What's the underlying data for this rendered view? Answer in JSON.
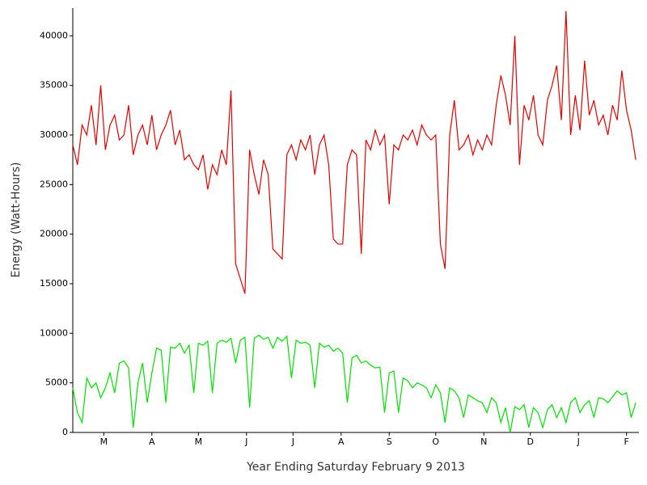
{
  "chart_data": {
    "type": "line",
    "xlabel": "Year Ending Saturday February  9  2013",
    "ylabel": "Energy (Watt-Hours)",
    "x": [
      0,
      3,
      6,
      9,
      12,
      15,
      18,
      21,
      24,
      27,
      30,
      33,
      36,
      39,
      42,
      45,
      48,
      51,
      54,
      57,
      60,
      63,
      66,
      69,
      72,
      75,
      78,
      81,
      84,
      87,
      90,
      93,
      96,
      99,
      102,
      105,
      108,
      111,
      114,
      117,
      120,
      123,
      126,
      129,
      132,
      135,
      138,
      141,
      144,
      147,
      150,
      153,
      156,
      159,
      162,
      165,
      168,
      171,
      174,
      177,
      180,
      183,
      186,
      189,
      192,
      195,
      198,
      201,
      204,
      207,
      210,
      213,
      216,
      219,
      222,
      225,
      228,
      231,
      234,
      237,
      240,
      243,
      246,
      249,
      252,
      255,
      258,
      261,
      264,
      267,
      270,
      273,
      276,
      279,
      282,
      285,
      288,
      291,
      294,
      297,
      300,
      303,
      306,
      309,
      312,
      315,
      318,
      321,
      324,
      327,
      330,
      333,
      336,
      339,
      342,
      345,
      348,
      351,
      354,
      357,
      360,
      363
    ],
    "series": [
      {
        "color": "#e00000",
        "values": [
          29000,
          27000,
          31000,
          30000,
          33000,
          29000,
          35000,
          28500,
          31000,
          32000,
          29500,
          30000,
          33000,
          28000,
          30000,
          31000,
          29000,
          32000,
          28500,
          30000,
          31000,
          32500,
          29000,
          30500,
          27500,
          28000,
          27000,
          26500,
          28000,
          24500,
          27000,
          26000,
          28500,
          27000,
          34500,
          17000,
          15500,
          14000,
          28500,
          26000,
          24000,
          27500,
          26000,
          18500,
          18000,
          17500,
          28000,
          29000,
          27500,
          29500,
          28500,
          30000,
          26000,
          29000,
          30000,
          27000,
          19500,
          19000,
          19000,
          27000,
          28500,
          28000,
          18000,
          29500,
          28500,
          30500,
          29000,
          30000,
          23000,
          29000,
          28500,
          30000,
          29500,
          30500,
          29000,
          31000,
          30000,
          29500,
          30000,
          19000,
          16500,
          30000,
          33500,
          28500,
          29000,
          30000,
          28000,
          29500,
          28500,
          30000,
          29000,
          33000,
          36000,
          34000,
          31000,
          40000,
          27000,
          33000,
          31500,
          34000,
          30000,
          29000,
          33500,
          35000,
          37000,
          31500,
          42500,
          30000,
          34000,
          30500,
          37500,
          32000,
          33500,
          31000,
          32000,
          30000,
          33000,
          31500,
          36500,
          32500,
          30500,
          27500
        ]
      },
      {
        "color": "#00e000",
        "values": [
          4500,
          2000,
          1000,
          5500,
          4500,
          5000,
          3500,
          4500,
          6000,
          4000,
          7000,
          7200,
          6500,
          500,
          5000,
          7000,
          3000,
          6000,
          8500,
          8300,
          3000,
          8600,
          8500,
          9000,
          8000,
          8800,
          4000,
          9000,
          8800,
          9200,
          4000,
          9000,
          9300,
          9100,
          9500,
          7000,
          9300,
          9600,
          2500,
          9500,
          9800,
          9400,
          9600,
          8500,
          9600,
          9200,
          9700,
          5500,
          9300,
          9000,
          9100,
          8800,
          4500,
          9000,
          8600,
          8800,
          8200,
          8500,
          8000,
          3000,
          7500,
          7800,
          7000,
          7200,
          6800,
          6500,
          6600,
          2000,
          6000,
          6200,
          2000,
          5500,
          5200,
          4500,
          5000,
          4800,
          4500,
          3500,
          4800,
          4000,
          1000,
          4500,
          4200,
          3500,
          1500,
          3800,
          3500,
          3200,
          3000,
          2000,
          3500,
          3000,
          1000,
          2500,
          0,
          2600,
          2300,
          2800,
          500,
          2500,
          2000,
          500,
          2300,
          2800,
          1500,
          2500,
          1000,
          3000,
          3500,
          2000,
          2800,
          3200,
          1500,
          3500,
          3400,
          3000,
          3600,
          4200,
          3800,
          4000,
          1500,
          3000
        ]
      }
    ],
    "xlim": [
      0,
      365
    ],
    "xticks": [
      {
        "value": 20,
        "label": "M"
      },
      {
        "value": 51,
        "label": "A"
      },
      {
        "value": 81,
        "label": "M"
      },
      {
        "value": 112,
        "label": "J"
      },
      {
        "value": 142,
        "label": "J"
      },
      {
        "value": 173,
        "label": "A"
      },
      {
        "value": 204,
        "label": "S"
      },
      {
        "value": 234,
        "label": "O"
      },
      {
        "value": 265,
        "label": "N"
      },
      {
        "value": 295,
        "label": "D"
      },
      {
        "value": 326,
        "label": "J"
      },
      {
        "value": 357,
        "label": "F"
      }
    ],
    "ylim": [
      0,
      42800
    ],
    "yticks": [
      0,
      5000,
      10000,
      15000,
      20000,
      25000,
      30000,
      35000,
      40000
    ]
  }
}
